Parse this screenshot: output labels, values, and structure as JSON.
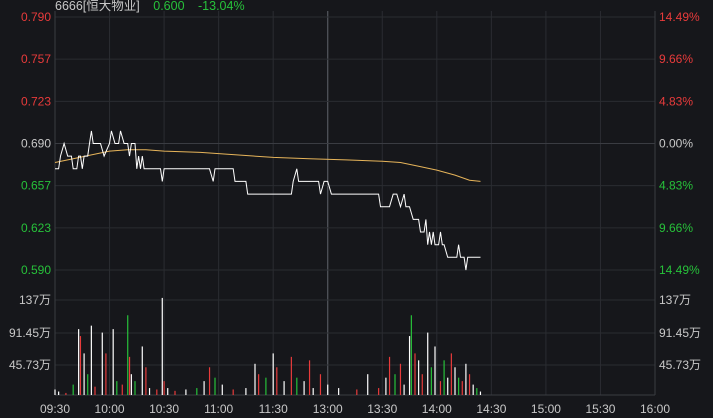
{
  "header": {
    "code_name": "6666[恒大物业]",
    "price": "0.600",
    "change_pct": "-13.04%"
  },
  "colors": {
    "background": "#16171b",
    "grid": "#2a2c31",
    "up": "#e83b3b",
    "down": "#27c13a",
    "neutral_text": "#c8c8c8",
    "price_line": "#ffffff",
    "avg_line": "#e6b45a",
    "volume_neutral": "#ffffff"
  },
  "chart_data": {
    "type": "line",
    "title": "",
    "price_axis": {
      "labels": [
        "0.790",
        "0.757",
        "0.723",
        "0.690",
        "0.657",
        "0.623",
        "0.590"
      ],
      "range": [
        0.59,
        0.79
      ],
      "reference": 0.69
    },
    "pct_axis": {
      "labels": [
        "14.49%",
        "9.66%",
        "4.83%",
        "0.00%",
        "4.83%",
        "9.66%",
        "14.49%"
      ]
    },
    "time_axis": {
      "labels": [
        "09:30",
        "10:00",
        "10:30",
        "11:00",
        "11:30",
        "13:00",
        "13:30",
        "14:00",
        "14:30",
        "15:00",
        "15:30",
        "16:00"
      ]
    },
    "volume_axis": {
      "labels": [
        "137万",
        "91.45万",
        "45.73万"
      ],
      "max_wan": 137
    },
    "price_series": {
      "name": "",
      "points": [
        [
          0,
          0.67
        ],
        [
          2,
          0.67
        ],
        [
          3,
          0.68
        ],
        [
          5,
          0.69
        ],
        [
          7,
          0.68
        ],
        [
          9,
          0.68
        ],
        [
          10,
          0.67
        ],
        [
          12,
          0.67
        ],
        [
          13,
          0.68
        ],
        [
          14,
          0.68
        ],
        [
          15,
          0.67
        ],
        [
          16,
          0.68
        ],
        [
          18,
          0.68
        ],
        [
          19,
          0.69
        ],
        [
          20,
          0.7
        ],
        [
          21,
          0.69
        ],
        [
          22,
          0.69
        ],
        [
          25,
          0.69
        ],
        [
          27,
          0.68
        ],
        [
          30,
          0.69
        ],
        [
          31,
          0.7
        ],
        [
          33,
          0.69
        ],
        [
          35,
          0.69
        ],
        [
          36,
          0.7
        ],
        [
          38,
          0.69
        ],
        [
          40,
          0.69
        ],
        [
          41,
          0.68
        ],
        [
          42,
          0.69
        ],
        [
          44,
          0.69
        ],
        [
          45,
          0.67
        ],
        [
          46,
          0.68
        ],
        [
          47,
          0.67
        ],
        [
          48,
          0.68
        ],
        [
          49,
          0.67
        ],
        [
          55,
          0.67
        ],
        [
          58,
          0.67
        ],
        [
          59,
          0.66
        ],
        [
          60,
          0.67
        ],
        [
          75,
          0.67
        ],
        [
          85,
          0.67
        ],
        [
          87,
          0.66
        ],
        [
          88,
          0.67
        ],
        [
          92,
          0.67
        ],
        [
          98,
          0.67
        ],
        [
          99,
          0.66
        ],
        [
          101,
          0.66
        ],
        [
          105,
          0.66
        ],
        [
          106,
          0.65
        ],
        [
          120,
          0.65
        ],
        [
          130,
          0.65
        ],
        [
          131,
          0.66
        ],
        [
          133,
          0.67
        ],
        [
          134,
          0.66
        ],
        [
          140,
          0.66
        ],
        [
          145,
          0.66
        ],
        [
          146,
          0.65
        ],
        [
          148,
          0.66
        ],
        [
          150,
          0.66
        ],
        [
          152,
          0.65
        ],
        [
          170,
          0.65
        ],
        [
          178,
          0.65
        ],
        [
          179,
          0.64
        ],
        [
          184,
          0.64
        ],
        [
          186,
          0.65
        ],
        [
          188,
          0.65
        ],
        [
          190,
          0.64
        ],
        [
          192,
          0.65
        ],
        [
          193,
          0.64
        ],
        [
          195,
          0.64
        ],
        [
          197,
          0.63
        ],
        [
          200,
          0.63
        ],
        [
          201,
          0.62
        ],
        [
          203,
          0.62
        ],
        [
          204,
          0.63
        ],
        [
          205,
          0.61
        ],
        [
          206,
          0.62
        ],
        [
          207,
          0.61
        ],
        [
          208,
          0.62
        ],
        [
          209,
          0.61
        ],
        [
          211,
          0.61
        ],
        [
          212,
          0.62
        ],
        [
          213,
          0.61
        ],
        [
          214,
          0.61
        ],
        [
          216,
          0.6
        ],
        [
          221,
          0.6
        ],
        [
          222,
          0.61
        ],
        [
          223,
          0.6
        ],
        [
          225,
          0.6
        ],
        [
          226,
          0.59
        ],
        [
          227,
          0.6
        ],
        [
          234,
          0.6
        ]
      ]
    },
    "avg_series": {
      "name": "",
      "points": [
        [
          0,
          0.675
        ],
        [
          10,
          0.678
        ],
        [
          20,
          0.681
        ],
        [
          30,
          0.684
        ],
        [
          40,
          0.685
        ],
        [
          50,
          0.685
        ],
        [
          60,
          0.684
        ],
        [
          80,
          0.683
        ],
        [
          100,
          0.681
        ],
        [
          120,
          0.679
        ],
        [
          140,
          0.678
        ],
        [
          160,
          0.677
        ],
        [
          180,
          0.676
        ],
        [
          190,
          0.675
        ],
        [
          200,
          0.672
        ],
        [
          210,
          0.669
        ],
        [
          220,
          0.665
        ],
        [
          228,
          0.661
        ],
        [
          234,
          0.66
        ]
      ]
    },
    "volume_bars": [
      {
        "t": 0,
        "v": 8,
        "c": "white"
      },
      {
        "t": 2,
        "v": 5,
        "c": "white"
      },
      {
        "t": 6,
        "v": 3,
        "c": "red"
      },
      {
        "t": 10,
        "v": 15,
        "c": "green"
      },
      {
        "t": 13,
        "v": 95,
        "c": "white"
      },
      {
        "t": 14,
        "v": 85,
        "c": "red"
      },
      {
        "t": 16,
        "v": 60,
        "c": "white"
      },
      {
        "t": 18,
        "v": 30,
        "c": "green"
      },
      {
        "t": 20,
        "v": 100,
        "c": "white"
      },
      {
        "t": 22,
        "v": 12,
        "c": "red"
      },
      {
        "t": 26,
        "v": 90,
        "c": "white"
      },
      {
        "t": 28,
        "v": 60,
        "c": "red"
      },
      {
        "t": 32,
        "v": 95,
        "c": "white"
      },
      {
        "t": 34,
        "v": 20,
        "c": "green"
      },
      {
        "t": 37,
        "v": 15,
        "c": "red"
      },
      {
        "t": 40,
        "v": 115,
        "c": "green"
      },
      {
        "t": 41,
        "v": 55,
        "c": "red"
      },
      {
        "t": 42,
        "v": 30,
        "c": "white"
      },
      {
        "t": 44,
        "v": 20,
        "c": "green"
      },
      {
        "t": 48,
        "v": 70,
        "c": "white"
      },
      {
        "t": 50,
        "v": 40,
        "c": "red"
      },
      {
        "t": 52,
        "v": 10,
        "c": "white"
      },
      {
        "t": 56,
        "v": 8,
        "c": "red"
      },
      {
        "t": 59,
        "v": 140,
        "c": "white"
      },
      {
        "t": 60,
        "v": 20,
        "c": "red"
      },
      {
        "t": 62,
        "v": 10,
        "c": "white"
      },
      {
        "t": 66,
        "v": 6,
        "c": "red"
      },
      {
        "t": 72,
        "v": 8,
        "c": "white"
      },
      {
        "t": 78,
        "v": 10,
        "c": "green"
      },
      {
        "t": 82,
        "v": 20,
        "c": "white"
      },
      {
        "t": 85,
        "v": 40,
        "c": "red"
      },
      {
        "t": 88,
        "v": 25,
        "c": "green"
      },
      {
        "t": 92,
        "v": 15,
        "c": "white"
      },
      {
        "t": 98,
        "v": 8,
        "c": "red"
      },
      {
        "t": 105,
        "v": 10,
        "c": "white"
      },
      {
        "t": 110,
        "v": 45,
        "c": "white"
      },
      {
        "t": 112,
        "v": 30,
        "c": "red"
      },
      {
        "t": 116,
        "v": 25,
        "c": "green"
      },
      {
        "t": 120,
        "v": 60,
        "c": "white"
      },
      {
        "t": 122,
        "v": 40,
        "c": "red"
      },
      {
        "t": 126,
        "v": 20,
        "c": "white"
      },
      {
        "t": 130,
        "v": 55,
        "c": "red"
      },
      {
        "t": 133,
        "v": 25,
        "c": "green"
      },
      {
        "t": 137,
        "v": 20,
        "c": "white"
      },
      {
        "t": 140,
        "v": 50,
        "c": "red"
      },
      {
        "t": 142,
        "v": 10,
        "c": "white"
      },
      {
        "t": 146,
        "v": 30,
        "c": "red"
      },
      {
        "t": 150,
        "v": 15,
        "c": "white"
      },
      {
        "t": 156,
        "v": 10,
        "c": "white"
      },
      {
        "t": 166,
        "v": 8,
        "c": "red"
      },
      {
        "t": 172,
        "v": 30,
        "c": "white"
      },
      {
        "t": 178,
        "v": 10,
        "c": "red"
      },
      {
        "t": 182,
        "v": 25,
        "c": "white"
      },
      {
        "t": 184,
        "v": 55,
        "c": "red"
      },
      {
        "t": 187,
        "v": 30,
        "c": "green"
      },
      {
        "t": 190,
        "v": 45,
        "c": "red"
      },
      {
        "t": 192,
        "v": 15,
        "c": "white"
      },
      {
        "t": 195,
        "v": 85,
        "c": "white"
      },
      {
        "t": 196,
        "v": 115,
        "c": "green"
      },
      {
        "t": 198,
        "v": 60,
        "c": "red"
      },
      {
        "t": 200,
        "v": 50,
        "c": "white"
      },
      {
        "t": 202,
        "v": 30,
        "c": "red"
      },
      {
        "t": 205,
        "v": 90,
        "c": "white"
      },
      {
        "t": 207,
        "v": 40,
        "c": "green"
      },
      {
        "t": 209,
        "v": 70,
        "c": "white"
      },
      {
        "t": 212,
        "v": 20,
        "c": "red"
      },
      {
        "t": 214,
        "v": 50,
        "c": "green"
      },
      {
        "t": 216,
        "v": 25,
        "c": "white"
      },
      {
        "t": 218,
        "v": 60,
        "c": "red"
      },
      {
        "t": 220,
        "v": 40,
        "c": "white"
      },
      {
        "t": 222,
        "v": 25,
        "c": "green"
      },
      {
        "t": 224,
        "v": 20,
        "c": "red"
      },
      {
        "t": 226,
        "v": 45,
        "c": "white"
      },
      {
        "t": 228,
        "v": 30,
        "c": "red"
      },
      {
        "t": 230,
        "v": 15,
        "c": "white"
      },
      {
        "t": 232,
        "v": 10,
        "c": "green"
      },
      {
        "t": 234,
        "v": 5,
        "c": "white"
      }
    ]
  }
}
